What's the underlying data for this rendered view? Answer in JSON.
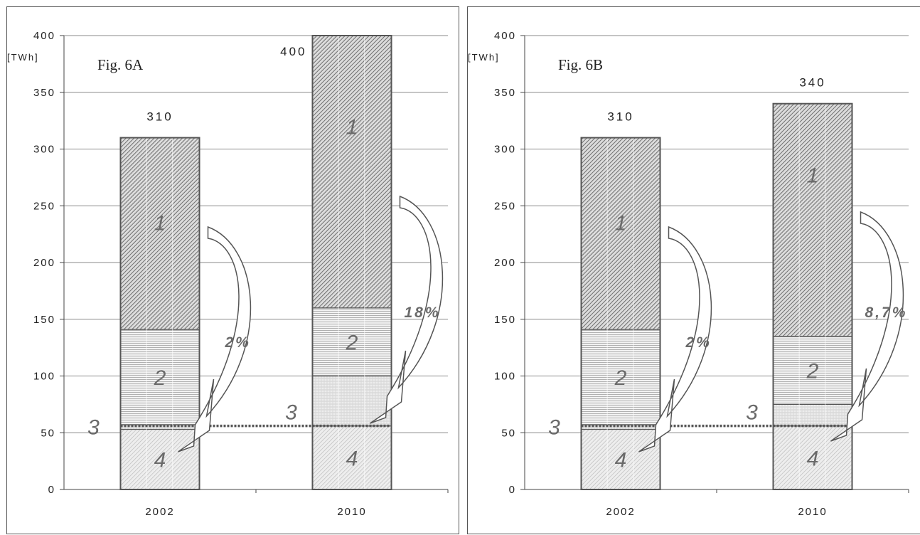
{
  "chart_data": [
    {
      "type": "bar",
      "stacked": true,
      "title": "Fig. 6A",
      "ylabel": "[TWh]",
      "ylim": [
        0,
        400
      ],
      "yticks": [
        "0",
        "50",
        "100",
        "150",
        "200",
        "250",
        "300",
        "350",
        "400"
      ],
      "categories": [
        "2002",
        "2010"
      ],
      "totals": [
        "310",
        "400"
      ],
      "series": [
        {
          "name": "4",
          "values": [
            53,
            56
          ]
        },
        {
          "name": "3",
          "values": [
            4,
            44
          ]
        },
        {
          "name": "2",
          "values": [
            84,
            60
          ]
        },
        {
          "name": "1",
          "values": [
            169,
            240
          ]
        }
      ],
      "segment_labels": [
        "1",
        "2",
        "3",
        "4"
      ],
      "annotations": [
        "2%",
        "18%"
      ],
      "reference_line": 56
    },
    {
      "type": "bar",
      "stacked": true,
      "title": "Fig. 6B",
      "ylabel": "[TWh]",
      "ylim": [
        0,
        400
      ],
      "yticks": [
        "0",
        "50",
        "100",
        "150",
        "200",
        "250",
        "300",
        "350",
        "400"
      ],
      "categories": [
        "2002",
        "2010"
      ],
      "totals": [
        "310",
        "340"
      ],
      "series": [
        {
          "name": "4",
          "values": [
            53,
            56
          ]
        },
        {
          "name": "3",
          "values": [
            4,
            19
          ]
        },
        {
          "name": "2",
          "values": [
            84,
            60
          ]
        },
        {
          "name": "1",
          "values": [
            169,
            205
          ]
        }
      ],
      "segment_labels": [
        "1",
        "2",
        "3",
        "4"
      ],
      "annotations": [
        "2%",
        "8,7%"
      ],
      "reference_line": 56
    }
  ]
}
